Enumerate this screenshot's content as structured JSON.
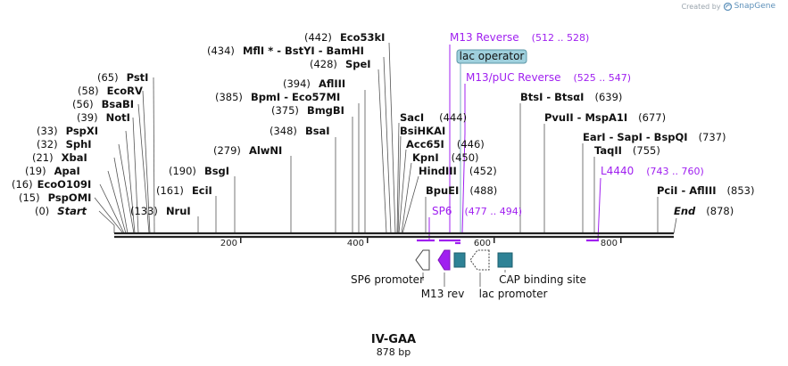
{
  "branding": {
    "created_by": "Created by",
    "product": "SnapGene",
    "logo_icon": "snapgene-logo-icon"
  },
  "sequence": {
    "name": "IV-GAA",
    "length_label": "878 bp",
    "length": 878
  },
  "colors": {
    "backbone": "#222222",
    "feature_purple": "#a020f0",
    "feature_teal": "#2e8296",
    "operator_fill": "#9fd0dd",
    "label_black": "#000000",
    "text_gray": "#222222"
  },
  "sites": [
    {
      "pos": "(0)",
      "name": "Start",
      "italic": true
    },
    {
      "pos": "(15)",
      "name": "PspOMI"
    },
    {
      "pos": "(16)",
      "name": "EcoO109I"
    },
    {
      "pos": "(19)",
      "name": "ApaI"
    },
    {
      "pos": "(21)",
      "name": "XbaI"
    },
    {
      "pos": "(32)",
      "name": "SphI"
    },
    {
      "pos": "(33)",
      "name": "PspXI"
    },
    {
      "pos": "(39)",
      "name": "NotI"
    },
    {
      "pos": "(56)",
      "name": "BsaBI"
    },
    {
      "pos": "(58)",
      "name": "EcoRV"
    },
    {
      "pos": "(65)",
      "name": "PstI"
    },
    {
      "pos": "(133)",
      "name": "NruI"
    },
    {
      "pos": "(161)",
      "name": "EciI"
    },
    {
      "pos": "(190)",
      "name": "BsgI"
    },
    {
      "pos": "(279)",
      "name": "AlwNI"
    },
    {
      "pos": "(348)",
      "name": "BsaI"
    },
    {
      "pos": "(375)",
      "name": "BmgBI"
    },
    {
      "pos": "(385)",
      "name": "BpmI  - Eco57MI"
    },
    {
      "pos": "(394)",
      "name": "AflIII"
    },
    {
      "pos": "(428)",
      "name": "SpeI"
    },
    {
      "pos": "(434)",
      "name": "MflI * - BstYI  - BamHI"
    },
    {
      "pos": "(442)",
      "name": "Eco53kI"
    },
    {
      "name": "SacI",
      "pos": "(444)",
      "pos_first": false
    },
    {
      "name": "BsiHKAI"
    },
    {
      "name": "Acc65I",
      "pos": "(446)",
      "pos_first": false
    },
    {
      "name": "KpnI",
      "pos": "(450)",
      "pos_first": false
    },
    {
      "name": "HindIII",
      "pos": "(452)",
      "pos_first": false
    },
    {
      "name": "BpuEI",
      "pos": "(488)",
      "pos_first": false
    },
    {
      "name": "BtsI  - BtsαI",
      "pos": "(639)",
      "pos_first": false
    },
    {
      "name": "PvuII  - MspA1I",
      "pos": "(677)",
      "pos_first": false
    },
    {
      "name": "EarI  - SapI  - BspQI",
      "pos": "(737)",
      "pos_first": false
    },
    {
      "name": "TaqII",
      "pos": "(755)",
      "pos_first": false
    },
    {
      "name": "PciI  - AflIII",
      "pos": "(853)",
      "pos_first": false
    },
    {
      "name": "End",
      "pos": "(878)",
      "pos_first": false,
      "italic": true
    }
  ],
  "primers": [
    {
      "name": "M13 Reverse",
      "range": "(512 .. 528)"
    },
    {
      "name": "M13/pUC Reverse",
      "range": "(525 .. 547)"
    },
    {
      "name": "L4440",
      "range": "(743 .. 760)"
    },
    {
      "name": "SP6",
      "range": "(477 .. 494)"
    }
  ],
  "operator": {
    "name": "lac operator"
  },
  "features": [
    {
      "name": "SP6 promoter",
      "icon": "promoter-arrow-icon"
    },
    {
      "name": "M13 rev",
      "icon": "arrow-left-filled-icon"
    },
    {
      "name": "lac promoter",
      "icon": "promoter-arrow-dotted-icon"
    },
    {
      "name": "CAP binding site",
      "icon": "binding-site-box-icon"
    }
  ],
  "ruler": [
    "200",
    "400",
    "600",
    "800"
  ]
}
